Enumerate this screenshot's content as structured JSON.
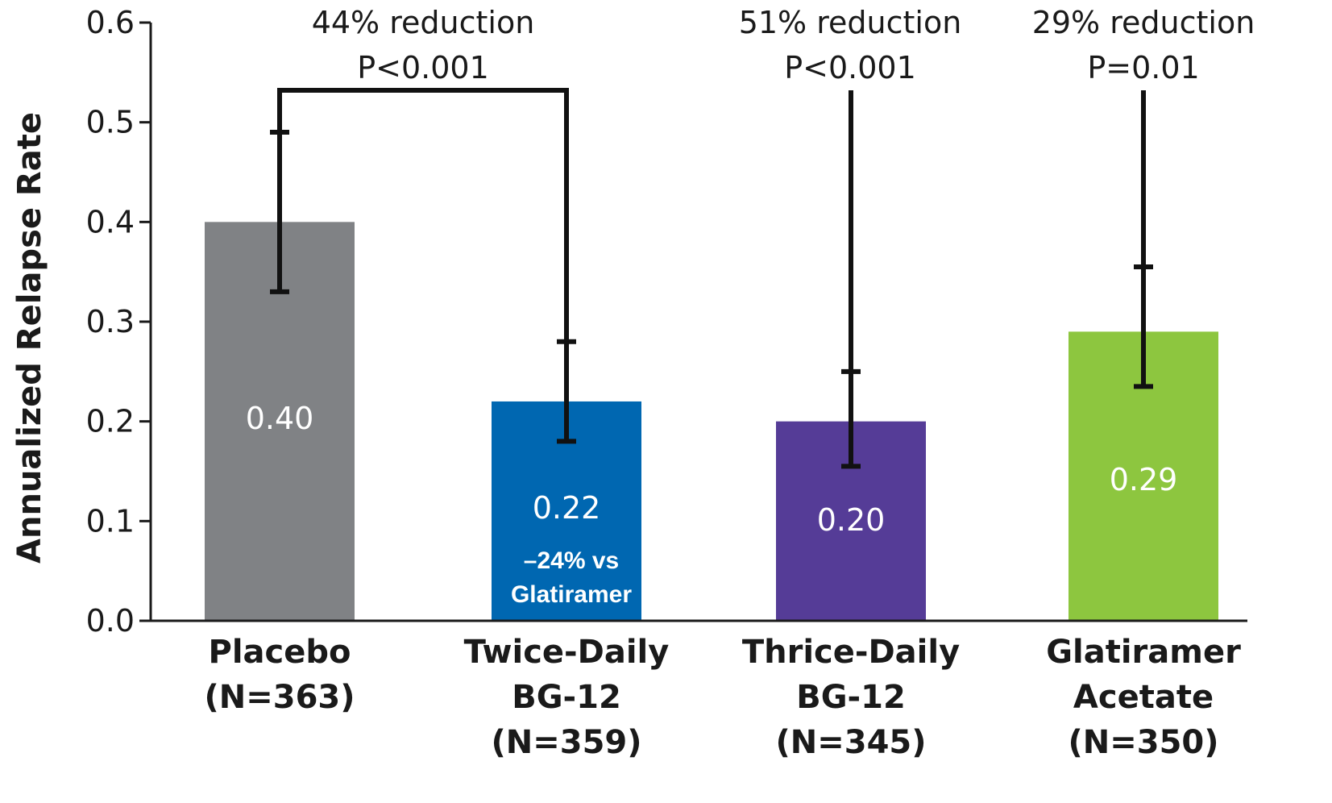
{
  "chart_data": {
    "type": "bar",
    "ylabel": "Annualized Relapse Rate",
    "ylim": [
      0.0,
      0.6
    ],
    "yticks": [
      "0.0",
      "0.1",
      "0.2",
      "0.3",
      "0.4",
      "0.5",
      "0.6"
    ],
    "categories": [
      [
        "Placebo",
        "(N=363)"
      ],
      [
        "Twice-Daily",
        "BG-12",
        "(N=359)"
      ],
      [
        "Thrice-Daily",
        "BG-12",
        "(N=345)"
      ],
      [
        "Glatiramer",
        "Acetate",
        "(N=350)"
      ]
    ],
    "values": [
      0.4,
      0.22,
      0.2,
      0.29
    ],
    "bar_labels": [
      "0.40",
      "0.22",
      "0.20",
      "0.29"
    ],
    "error_low": [
      0.33,
      0.18,
      0.155,
      0.235
    ],
    "error_high": [
      0.49,
      0.28,
      0.25,
      0.355
    ],
    "colors": [
      "#808285",
      "#0067b1",
      "#553c97",
      "#8dc63f"
    ],
    "inner_note": {
      "bar_index": 1,
      "lines": [
        "–24% vs",
        "Glatiramer"
      ]
    },
    "comparisons": [
      {
        "bar_index": 1,
        "lines": [
          "44% reduction",
          "P<0.001"
        ]
      },
      {
        "bar_index": 2,
        "lines": [
          "51% reduction",
          "P<0.001"
        ]
      },
      {
        "bar_index": 3,
        "lines": [
          "29% reduction",
          "P=0.01"
        ]
      }
    ],
    "grid": false,
    "legend": "none"
  }
}
